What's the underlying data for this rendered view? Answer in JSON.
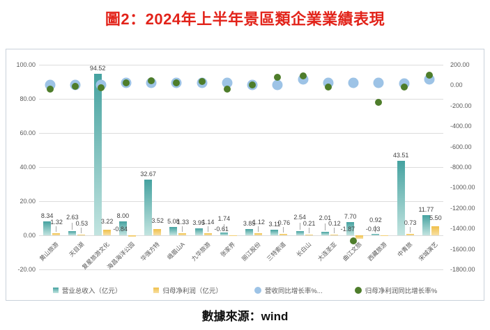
{
  "title": "圖2：2024年上半年景區類企業業績表現",
  "source": "數據來源：wind",
  "colors": {
    "title": "#e2231a",
    "revenue_bar_top": "#45a2a0",
    "revenue_bar_bottom": "#c2e4e0",
    "profit_bar_top": "#f0c04a",
    "profit_bar_bottom": "#f7e0a4",
    "revenue_dot": "#9dc3e6",
    "profit_dot": "#4e7d2b",
    "axis_text": "#595959",
    "grid": "#dcdcdc"
  },
  "chart_data": {
    "type": "bar",
    "title": "圖2：2024年上半年景區類企業業績表現",
    "categories": [
      "黄山旅游",
      "天目湖",
      "复星旅游文化",
      "海昌海洋公园",
      "华强方特",
      "峨眉山A",
      "九华旅游",
      "张家界",
      "丽江股份",
      "三特索道",
      "长白山",
      "大连圣亚",
      "曲江文旅",
      "西藏旅游",
      "中青旅",
      "宋城演艺"
    ],
    "series": [
      {
        "name": "营业总收入（亿元）",
        "type": "bar",
        "axis": "left",
        "values": [
          8.34,
          2.63,
          94.52,
          8.0,
          32.67,
          5.08,
          3.95,
          1.74,
          3.85,
          3.11,
          2.54,
          2.01,
          7.7,
          0.92,
          43.51,
          11.77
        ]
      },
      {
        "name": "归母净利润（亿元）",
        "type": "bar",
        "axis": "left",
        "values": [
          1.32,
          0.53,
          3.22,
          -0.84,
          3.52,
          1.33,
          1.14,
          -0.61,
          1.12,
          0.76,
          0.21,
          0.12,
          -1.87,
          -0.03,
          0.73,
          5.5
        ]
      },
      {
        "name": "营收同比增长率%...",
        "type": "scatter",
        "axis": "right",
        "estimated": true,
        "values": [
          0,
          5,
          5,
          20,
          25,
          20,
          20,
          20,
          5,
          0,
          60,
          25,
          25,
          20,
          15,
          55
        ]
      },
      {
        "name": "归母净利润同比增长率%",
        "type": "scatter",
        "axis": "right",
        "estimated": true,
        "values": [
          -40,
          -10,
          -25,
          20,
          45,
          25,
          35,
          -35,
          0,
          75,
          90,
          -20,
          -1520,
          -170,
          -15,
          95
        ]
      }
    ],
    "left_axis": {
      "range": [
        -20,
        100
      ],
      "step": 20,
      "tick_labels": [
        "100.00",
        "80.00",
        "60.00",
        "40.00",
        "20.00",
        "0.00",
        "-20.00"
      ]
    },
    "right_axis": {
      "range": [
        -1800,
        200
      ],
      "step": 200,
      "tick_labels": [
        "200.00",
        "0.00",
        "-200.00",
        "-400.00",
        "-600.00",
        "-800.00",
        "-1000.00",
        "-1200.00",
        "-1400.00",
        "-1600.00",
        "-1800.00"
      ]
    },
    "grid": true,
    "legend_position": "bottom",
    "xlabel": "",
    "ylabel": ""
  }
}
